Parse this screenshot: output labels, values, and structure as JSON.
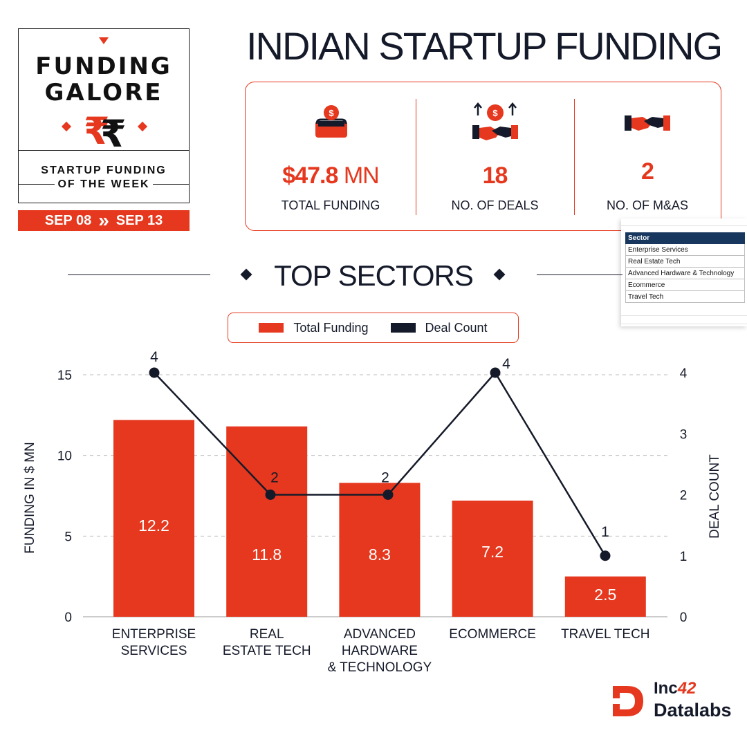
{
  "badge": {
    "title_line1": "FUNDING",
    "title_line2": "GALORE",
    "currency_glyph": "₹₹",
    "subtitle_line1": "STARTUP FUNDING",
    "subtitle_line2": "OF THE WEEK",
    "date_from": "SEP 08",
    "date_sep": "»",
    "date_to": "SEP 13"
  },
  "header": {
    "title": "INDIAN STARTUP FUNDING"
  },
  "stats": [
    {
      "value": "$47.8",
      "unit": " MN",
      "label": "TOTAL FUNDING",
      "icon": "money-box-icon"
    },
    {
      "value": "18",
      "unit": "",
      "label": "NO. OF DEALS",
      "icon": "deal-growth-icon"
    },
    {
      "value": "2",
      "unit": "",
      "label": "NO. OF M&AS",
      "icon": "handshake-icon"
    }
  ],
  "sheet": {
    "header": "Sector",
    "rows": [
      "Enterprise Services",
      "Real Estate Tech",
      "Advanced Hardware & Technology",
      "Ecommerce",
      "Travel Tech"
    ]
  },
  "section": {
    "title": "TOP SECTORS"
  },
  "legend": {
    "funding_label": "Total Funding",
    "deals_label": "Deal Count"
  },
  "colors": {
    "accent": "#e5381e",
    "navy": "#151a2a"
  },
  "chart_data": {
    "type": "bar",
    "categories": [
      [
        "ENTERPRISE",
        "SERVICES"
      ],
      [
        "REAL",
        "ESTATE TECH"
      ],
      [
        "ADVANCED",
        "HARDWARE",
        "& TECHNOLOGY"
      ],
      [
        "ECOMMERCE"
      ],
      [
        "TRAVEL TECH"
      ]
    ],
    "series": [
      {
        "name": "Total Funding",
        "axis": "left",
        "values": [
          12.2,
          11.8,
          8.3,
          7.2,
          2.5
        ]
      },
      {
        "name": "Deal Count",
        "axis": "right",
        "type": "line",
        "values": [
          4,
          2,
          2,
          4,
          1
        ]
      }
    ],
    "ylabel": "FUNDING IN $ MN",
    "y2label": "DEAL COUNT",
    "ylim": [
      0,
      15
    ],
    "y2lim": [
      0,
      4
    ],
    "yticks": [
      0,
      5,
      10,
      15
    ],
    "y2ticks": [
      0,
      1,
      2,
      3,
      4
    ],
    "grid": true
  },
  "logo": {
    "line1_a": "Inc",
    "line1_b": "42",
    "line2": "Datalabs"
  }
}
